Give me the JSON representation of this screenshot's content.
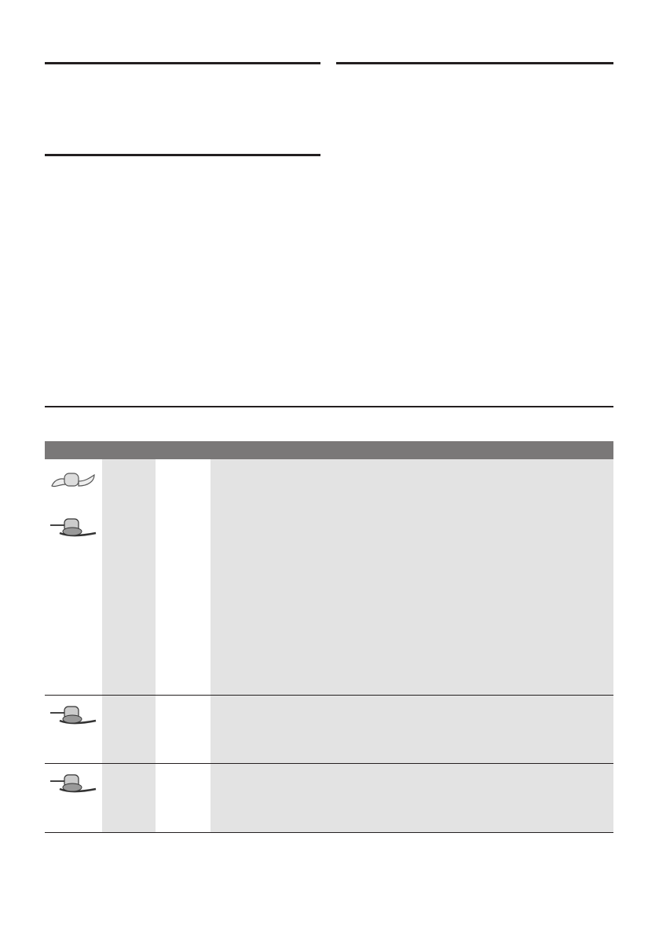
{
  "colors": {
    "rule": "#231f20",
    "table_header": "#7a7878",
    "shaded_cell": "#e3e3e3"
  },
  "table": {
    "rows": [
      {
        "icons": [
          "dough-blade-icon",
          "chopping-blade-icon"
        ]
      },
      {
        "icons": [
          "chopping-blade-icon"
        ]
      },
      {
        "icons": [
          "chopping-blade-icon"
        ]
      }
    ]
  }
}
